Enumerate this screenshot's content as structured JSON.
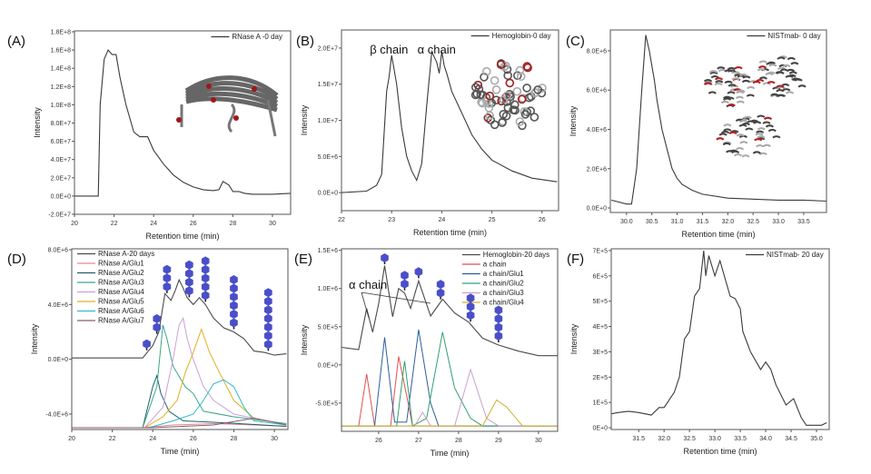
{
  "chart_data": [
    {
      "panel": "(A)",
      "type": "line",
      "xlabel": "Retention time (min)",
      "ylabel": "Intensity",
      "xlim": [
        20,
        30.92
      ],
      "ylim": [
        -20000000,
        181000000
      ],
      "xticks": [
        20,
        22,
        24,
        26,
        28,
        30
      ],
      "xtick_labels": [
        "20",
        "22",
        "24",
        "26",
        "28",
        "30"
      ],
      "yticks": [
        -20000000,
        0,
        20000000,
        40000000,
        60000000,
        80000000,
        100000000,
        120000000,
        140000000,
        160000000,
        180000000
      ],
      "ytick_labels": [
        "-2.0E+7",
        "0.0E+0",
        "2.0E+7",
        "4.0E+7",
        "6.0E+7",
        "8.0E+7",
        "1.0E+8",
        "1.2E+8",
        "1.4E+8",
        "1.6E+8",
        "1.8E+8"
      ],
      "legend_position": "top-right",
      "inset": "RNase A protein structure",
      "series": [
        {
          "name": "RNase A -0 day",
          "color": "#3a3a3a",
          "x": [
            20,
            21.2,
            21.3,
            21.5,
            21.7,
            21.9,
            22.1,
            22.3,
            22.6,
            23,
            23.3,
            23.7,
            24,
            24.5,
            25,
            25.5,
            26,
            26.5,
            27,
            27.3,
            27.5,
            27.8,
            28,
            28.3,
            28.6,
            29,
            30,
            30.9
          ],
          "y": [
            0,
            0,
            100000000,
            150000000,
            160000000,
            155000000,
            155000000,
            130000000,
            100000000,
            70000000,
            65000000,
            65000000,
            50000000,
            35000000,
            23000000,
            15000000,
            10000000,
            7000000,
            6000000,
            7000000,
            16000000,
            12000000,
            5000000,
            5000000,
            3000000,
            2000000,
            2000000,
            3000000
          ]
        }
      ]
    },
    {
      "panel": "(B)",
      "type": "line",
      "xlabel": "Retention time (min)",
      "ylabel": "Intensity",
      "xlim": [
        22,
        26.33
      ],
      "ylim": [
        -2500000,
        22500000
      ],
      "xticks": [
        22,
        23,
        24,
        25,
        26
      ],
      "xtick_labels": [
        "22",
        "23",
        "24",
        "25",
        "26"
      ],
      "yticks": [
        0,
        5000000,
        10000000,
        15000000,
        20000000
      ],
      "ytick_labels": [
        "0.0E+0",
        "5.0E+6",
        "1.0E+7",
        "1.5E+7",
        "2.0E+7"
      ],
      "legend_position": "top-right",
      "inset": "Hemoglobin protein structure",
      "annotations": [
        {
          "text": "β chain",
          "x": 23.0
        },
        {
          "text": "α chain",
          "x": 23.95
        }
      ],
      "series": [
        {
          "name": "Hemoglobin-0 day",
          "color": "#3a3a3a",
          "x": [
            22,
            22.5,
            22.7,
            22.8,
            22.9,
            22.95,
            23,
            23.05,
            23.1,
            23.2,
            23.3,
            23.4,
            23.5,
            23.6,
            23.7,
            23.8,
            23.9,
            23.95,
            24,
            24.05,
            24.1,
            24.2,
            24.4,
            24.6,
            24.8,
            25,
            25.4,
            25.8,
            26.3
          ],
          "y": [
            0,
            200000,
            1000000,
            2500000,
            14000000,
            16000000,
            19000000,
            17000000,
            15000000,
            9000000,
            5000000,
            3000000,
            1700000,
            4000000,
            12000000,
            19500000,
            18000000,
            16500000,
            19500000,
            17500000,
            16500000,
            14000000,
            11000000,
            8000000,
            6000000,
            4500000,
            3000000,
            2000000,
            1500000
          ]
        }
      ]
    },
    {
      "panel": "(C)",
      "type": "line",
      "xlabel": "Retention time (min)",
      "ylabel": "Intensity",
      "xlim": [
        29.68,
        33.95
      ],
      "ylim": [
        -230000,
        9060000
      ],
      "xticks": [
        30,
        30.5,
        31,
        31.5,
        32,
        32.5,
        33,
        33.5
      ],
      "xtick_labels": [
        "30.0",
        "30.5",
        "31.0",
        "31.5",
        "32.0",
        "32.5",
        "33.0",
        "33.5"
      ],
      "yticks": [
        0,
        2000000,
        4000000,
        6000000,
        8000000
      ],
      "ytick_labels": [
        "0.0E+0",
        "2.0E+6",
        "4.0E+6",
        "6.0E+6",
        "8.0E+6"
      ],
      "legend_position": "top-right",
      "inset": "NISTmab antibody structure",
      "series": [
        {
          "name": "NISTmab- 0 day",
          "color": "#3a3a3a",
          "x": [
            29.7,
            30.0,
            30.1,
            30.2,
            30.3,
            30.38,
            30.45,
            30.55,
            30.6,
            30.7,
            30.8,
            30.9,
            31.0,
            31.1,
            31.3,
            31.5,
            32,
            32.5,
            33,
            33.5,
            33.95
          ],
          "y": [
            400000,
            200000,
            200000,
            2000000,
            6000000,
            8800000,
            8000000,
            6500000,
            5500000,
            4000000,
            3000000,
            2000000,
            1500000,
            1200000,
            900000,
            700000,
            500000,
            450000,
            400000,
            400000,
            350000
          ]
        }
      ]
    },
    {
      "panel": "(D)",
      "type": "line",
      "xlabel": "Time (min)",
      "ylabel": "Intensity",
      "xlim": [
        20,
        30.67
      ],
      "ylim": [
        -5130000,
        8070000
      ],
      "xticks": [
        20,
        22,
        24,
        26,
        28,
        30
      ],
      "xtick_labels": [
        "20",
        "22",
        "24",
        "26",
        "28",
        "30"
      ],
      "yticks": [
        -4000000,
        0,
        4000000,
        8000000
      ],
      "ytick_labels": [
        "-4.0E+6",
        "0.0E+0",
        "4.0E+6",
        "8.0E+6"
      ],
      "legend_position": "top-left",
      "glycan_color": "#4a4fc8",
      "glycan_stacks": [
        {
          "x": 23.7,
          "count": 1
        },
        {
          "x": 24.2,
          "count": 2
        },
        {
          "x": 24.7,
          "count": 3
        },
        {
          "x": 25.8,
          "count": 4
        },
        {
          "x": 26.6,
          "count": 5
        },
        {
          "x": 28.0,
          "count": 6
        },
        {
          "x": 29.7,
          "count": 7
        }
      ],
      "series": [
        {
          "name": "RNase A-20 days",
          "color": "#4a4a4a",
          "x": [
            20,
            23.5,
            24,
            24.3,
            24.6,
            24.9,
            25.1,
            25.3,
            25.5,
            25.7,
            26,
            26.3,
            26.6,
            27,
            27.5,
            28,
            28.5,
            29,
            29.5,
            30,
            30.6
          ],
          "y": [
            100000,
            100000,
            1000000,
            2000000,
            4800000,
            4300000,
            5000000,
            5800000,
            5200000,
            4500000,
            4000000,
            4500000,
            4000000,
            3000000,
            2300000,
            2000000,
            1500000,
            600000,
            500000,
            300000,
            400000
          ]
        },
        {
          "name": "RNase A/Glu1",
          "color": "#e08a8a",
          "x": [
            20,
            23.5,
            25,
            27,
            29,
            30.6
          ],
          "y": [
            -5000000,
            -5000000,
            -4800000,
            -4700000,
            -4800000,
            -4900000
          ]
        },
        {
          "name": "RNase A/Glu2",
          "color": "#1f5f6e",
          "x": [
            20,
            23.5,
            24.0,
            24.2,
            24.4,
            24.8,
            25.5,
            27,
            30.6
          ],
          "y": [
            -5000000,
            -5000000,
            -2000000,
            -1200000,
            -2500000,
            -3800000,
            -4500000,
            -4600000,
            -4900000
          ]
        },
        {
          "name": "RNase A/Glu3",
          "color": "#3aa68a",
          "x": [
            20,
            23.5,
            24.2,
            24.5,
            24.7,
            25,
            25.6,
            26,
            26.5,
            28,
            30.6
          ],
          "y": [
            -5000000,
            -5000000,
            -2000000,
            2500000,
            1500000,
            -500000,
            -2000000,
            -2500000,
            -3800000,
            -4200000,
            -4700000
          ]
        },
        {
          "name": "RNase A/Glu4",
          "color": "#c9a0d8",
          "x": [
            20,
            23.6,
            24.5,
            25,
            25.3,
            25.5,
            25.7,
            26,
            26.5,
            27,
            28,
            30.6
          ],
          "y": [
            -5000000,
            -5000000,
            -3500000,
            0,
            2500000,
            3000000,
            1500000,
            0,
            -2000000,
            -3000000,
            -4000000,
            -4800000
          ]
        },
        {
          "name": "RNase A/Glu5",
          "color": "#e0b020",
          "x": [
            20,
            23.6,
            24.5,
            25.2,
            25.6,
            26,
            26.4,
            26.8,
            27.3,
            28,
            29,
            30.6
          ],
          "y": [
            -5000000,
            -5000000,
            -4200000,
            -3000000,
            -1000000,
            500000,
            2200000,
            500000,
            -1000000,
            -3000000,
            -4300000,
            -4800000
          ]
        },
        {
          "name": "RNase A/Glu6",
          "color": "#30b8c8",
          "x": [
            20,
            23.8,
            25,
            26,
            26.5,
            27,
            27.5,
            28,
            28.5,
            29,
            30.6
          ],
          "y": [
            -5000000,
            -5000000,
            -4500000,
            -4000000,
            -3000000,
            -1800000,
            -1500000,
            -2000000,
            -3500000,
            -4500000,
            -4800000
          ]
        },
        {
          "name": "RNase A/Glu7",
          "color": "#8a5a70",
          "x": [
            20,
            24,
            27,
            29,
            30,
            30.6
          ],
          "y": [
            -5000000,
            -5000000,
            -4800000,
            -4300000,
            -4600000,
            -4800000
          ]
        }
      ]
    },
    {
      "panel": "(E)",
      "type": "line",
      "xlabel": "Time (min)",
      "ylabel": "Intensity",
      "xlim": [
        25.07,
        30.48
      ],
      "ylim": [
        -870000,
        1520000
      ],
      "xticks": [
        26,
        27,
        28,
        29,
        30
      ],
      "xtick_labels": [
        "26",
        "27",
        "28",
        "29",
        "30"
      ],
      "yticks": [
        -500000,
        0,
        500000,
        1000000,
        1500000
      ],
      "ytick_labels": [
        "-5.0E+5",
        "0.0E+0",
        "5.0E+5",
        "1.0E+6",
        "1.5E+6"
      ],
      "legend_position": "top-right",
      "annotations": [
        {
          "text": "α chain",
          "x": 25.7
        }
      ],
      "glycan_color": "#4a4fc8",
      "glycan_stacks": [
        {
          "x": 26.15,
          "count": 1
        },
        {
          "x": 26.65,
          "count": 2
        },
        {
          "x": 27.0,
          "count": 1
        },
        {
          "x": 27.55,
          "count": 2
        },
        {
          "x": 28.3,
          "count": 3
        },
        {
          "x": 29.0,
          "count": 4
        }
      ],
      "series": [
        {
          "name": "Hemoglobin-20 days",
          "color": "#4a4a4a",
          "x": [
            25.07,
            25.5,
            25.7,
            25.85,
            26.0,
            26.15,
            26.35,
            26.5,
            26.65,
            26.8,
            27.0,
            27.3,
            27.6,
            27.9,
            28.25,
            28.6,
            29.0,
            29.5,
            30.0,
            30.48
          ],
          "y": [
            230000,
            200000,
            740000,
            430000,
            800000,
            1300000,
            630000,
            1000000,
            940000,
            740000,
            1100000,
            640000,
            860000,
            680000,
            560000,
            350000,
            260000,
            180000,
            120000,
            120000
          ]
        },
        {
          "name": "a chain",
          "color": "#e05050",
          "x": [
            25.07,
            25.5,
            25.7,
            25.9,
            26.3,
            26.5,
            26.7,
            26.85,
            30.48
          ],
          "y": [
            -800000,
            -800000,
            -120000,
            -800000,
            -800000,
            110000,
            -400000,
            -800000,
            -800000
          ]
        },
        {
          "name": "a chain/Glu1",
          "color": "#2a5fa0",
          "x": [
            25.07,
            25.9,
            26.15,
            26.4,
            26.7,
            27.0,
            27.3,
            27.5,
            30.48
          ],
          "y": [
            -800000,
            -800000,
            360000,
            -750000,
            -750000,
            460000,
            -500000,
            -800000,
            -800000
          ]
        },
        {
          "name": "a chain/Glu2",
          "color": "#30a070",
          "x": [
            25.07,
            26.45,
            26.65,
            26.85,
            27.2,
            27.6,
            27.9,
            28.3,
            28.6,
            30.48
          ],
          "y": [
            -800000,
            -800000,
            50000,
            -800000,
            -700000,
            430000,
            -300000,
            -700000,
            -800000,
            -800000
          ]
        },
        {
          "name": "a chain/Glu3",
          "color": "#c8a0d0",
          "x": [
            25.07,
            26.9,
            27.1,
            27.3,
            27.9,
            28.3,
            28.7,
            29.0,
            30.48
          ],
          "y": [
            -800000,
            -800000,
            -620000,
            -800000,
            -800000,
            -60000,
            -700000,
            -800000,
            -800000
          ]
        },
        {
          "name": "a chain/Glu4",
          "color": "#d0b030",
          "x": [
            25.07,
            28.6,
            28.95,
            29.2,
            29.6,
            30.48
          ],
          "y": [
            -800000,
            -800000,
            -460000,
            -550000,
            -800000,
            -800000
          ]
        }
      ]
    },
    {
      "panel": "(F)",
      "type": "line",
      "xlabel": "Retention time (min)",
      "ylabel": "Intensity",
      "xlim": [
        30.96,
        35.25
      ],
      "ylim": [
        -7000,
        707000
      ],
      "xticks": [
        31.5,
        32,
        32.5,
        33,
        33.5,
        34,
        34.5,
        35
      ],
      "xtick_labels": [
        "31.5",
        "32.0",
        "32.5",
        "33.0",
        "33.5",
        "34.0",
        "34.5",
        "35.0"
      ],
      "yticks": [
        0,
        100000,
        200000,
        300000,
        400000,
        500000,
        600000,
        700000
      ],
      "ytick_labels": [
        "0E+0",
        "1E+5",
        "2E+5",
        "3E+5",
        "4E+5",
        "5E+5",
        "6E+5",
        "7E+5"
      ],
      "legend_position": "top-right",
      "series": [
        {
          "name": "NISTmab- 20 day",
          "color": "#3a3a3a",
          "x": [
            30.96,
            31.1,
            31.3,
            31.5,
            31.75,
            31.9,
            32.0,
            32.2,
            32.3,
            32.4,
            32.5,
            32.6,
            32.7,
            32.78,
            32.82,
            32.88,
            33.0,
            33.1,
            33.2,
            33.3,
            33.4,
            33.5,
            33.55,
            33.7,
            33.9,
            34.0,
            34.1,
            34.2,
            34.4,
            34.55,
            34.7,
            34.8,
            35.1,
            35.2
          ],
          "y": [
            55000,
            60000,
            65000,
            60000,
            50000,
            80000,
            80000,
            140000,
            200000,
            350000,
            380000,
            520000,
            550000,
            700000,
            600000,
            680000,
            600000,
            660000,
            590000,
            520000,
            510000,
            470000,
            380000,
            300000,
            230000,
            260000,
            230000,
            170000,
            90000,
            115000,
            40000,
            10000,
            10000,
            20000
          ]
        }
      ]
    }
  ]
}
